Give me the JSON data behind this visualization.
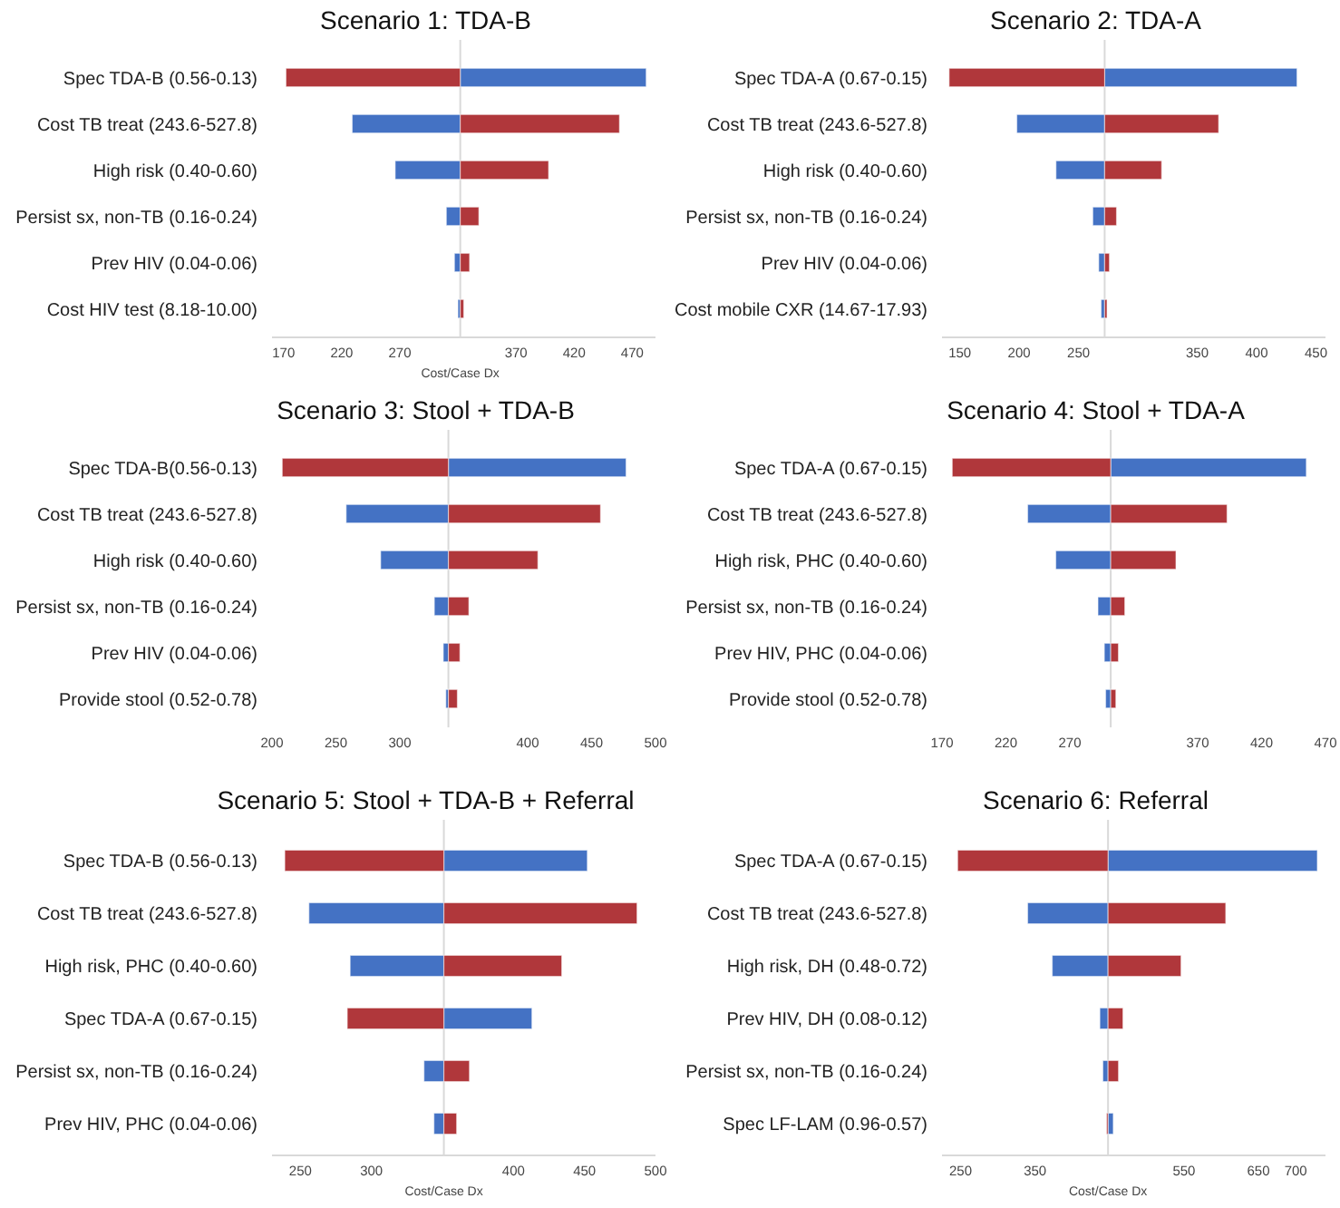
{
  "chart_data": [
    {
      "type": "bar",
      "orientation": "horizontal",
      "title": "Scenario 1: TDA-B",
      "xlabel": "Cost/Case Dx",
      "categories": [
        "Spec TDA-B (0.56-0.13)",
        "Cost TB treat (243.6-527.8)",
        "High risk (0.40-0.60)",
        "Persist sx, non-TB (0.16-0.24)",
        "Prev HIV (0.04-0.06)",
        "Cost HIV test (8.18-10.00)"
      ],
      "series": [
        {
          "color": "#4472c4",
          "base": [
            322,
            322,
            322,
            322,
            322,
            322
          ],
          "values": [
            160,
            -93,
            -56,
            -12,
            -5,
            -2
          ]
        },
        {
          "color": "#b0373b",
          "base": [
            322,
            322,
            322,
            322,
            322,
            322
          ],
          "values": [
            -150,
            137,
            76,
            16,
            8,
            3
          ]
        }
      ],
      "xlim": [
        160,
        490
      ],
      "xticks": [
        170,
        220,
        270,
        370,
        420,
        470
      ],
      "ref_lines": [
        {
          "axis": "x",
          "value": 322,
          "color": "#d9d9d9"
        }
      ]
    },
    {
      "type": "bar",
      "orientation": "horizontal",
      "title": "Scenario 2: TDA-A",
      "categories": [
        "Spec TDA-A (0.67-0.15)",
        "Cost TB treat (243.6-527.8)",
        "High risk (0.40-0.60)",
        "Persist sx, non-TB (0.16-0.24)",
        "Prev HIV (0.04-0.06)",
        "Cost mobile CXR (14.67-17.93)"
      ],
      "series": [
        {
          "color": "#4472c4",
          "base": [
            272,
            272,
            272,
            272,
            272,
            272
          ],
          "values": [
            162,
            -74,
            -41,
            -10,
            -5,
            -3
          ]
        },
        {
          "color": "#b0373b",
          "base": [
            272,
            272,
            272,
            272,
            272,
            272
          ],
          "values": [
            -131,
            96,
            48,
            10,
            4,
            2
          ]
        }
      ],
      "xlim": [
        135,
        458
      ],
      "xticks": [
        150,
        200,
        250,
        350,
        400,
        450
      ],
      "ref_lines": [
        {
          "axis": "x",
          "value": 272,
          "color": "#d9d9d9"
        }
      ]
    },
    {
      "type": "bar",
      "orientation": "horizontal",
      "title": "Scenario 3: Stool + TDA-B",
      "categories": [
        "Spec TDA-B(0.56-0.13)",
        "Cost TB treat (243.6-527.8)",
        "High risk (0.40-0.60)",
        "Persist sx, non-TB (0.16-0.24)",
        "Prev HIV (0.04-0.06)",
        "Provide stool (0.52-0.78)"
      ],
      "series": [
        {
          "color": "#4472c4",
          "base": [
            338,
            338,
            338,
            338,
            338,
            338
          ],
          "values": [
            139,
            -80,
            -53,
            -11,
            -4,
            -2
          ]
        },
        {
          "color": "#b0373b",
          "base": [
            338,
            338,
            338,
            338,
            338,
            338
          ],
          "values": [
            -130,
            119,
            70,
            16,
            9,
            7
          ]
        }
      ],
      "xlim": [
        200,
        500
      ],
      "xticks": [
        200,
        250,
        300,
        400,
        450,
        500
      ],
      "ref_lines": [
        {
          "axis": "x",
          "value": 338,
          "color": "#d9d9d9"
        }
      ]
    },
    {
      "type": "bar",
      "orientation": "horizontal",
      "title": "Scenario 4: Stool + TDA-A",
      "categories": [
        "Spec TDA-A (0.67-0.15)",
        "Cost TB treat (243.6-527.8)",
        "High risk, PHC (0.40-0.60)",
        "Persist sx, non-TB (0.16-0.24)",
        "Prev HIV, PHC (0.04-0.06)",
        "Provide stool (0.52-0.78)"
      ],
      "series": [
        {
          "color": "#4472c4",
          "base": [
            302,
            302,
            302,
            302,
            302,
            302
          ],
          "values": [
            153,
            -65,
            -43,
            -10,
            -5,
            -4
          ]
        },
        {
          "color": "#b0373b",
          "base": [
            302,
            302,
            302,
            302,
            302,
            302
          ],
          "values": [
            -124,
            91,
            51,
            11,
            6,
            4
          ]
        }
      ],
      "xlim": [
        170,
        470
      ],
      "xticks": [
        170,
        220,
        270,
        370,
        420,
        470
      ],
      "ref_lines": [
        {
          "axis": "x",
          "value": 302,
          "color": "#d9d9d9"
        }
      ]
    },
    {
      "type": "bar",
      "orientation": "horizontal",
      "title": "Scenario 5: Stool + TDA-B + Referral",
      "xlabel": "Cost/Case Dx",
      "categories": [
        "Spec TDA-B (0.56-0.13)",
        "Cost TB treat (243.6-527.8)",
        "High risk, PHC (0.40-0.60)",
        "Spec TDA-A (0.67-0.15)",
        "Persist sx, non-TB (0.16-0.24)",
        "Prev HIV, PHC (0.04-0.06)"
      ],
      "series": [
        {
          "color": "#4472c4",
          "base": [
            351,
            351,
            351,
            351,
            351,
            351
          ],
          "values": [
            101,
            -95,
            -66,
            62,
            -14,
            -7
          ]
        },
        {
          "color": "#b0373b",
          "base": [
            351,
            351,
            351,
            351,
            351,
            351
          ],
          "values": [
            -112,
            136,
            83,
            -68,
            18,
            9
          ]
        }
      ],
      "xlim": [
        230,
        500
      ],
      "xticks": [
        250,
        300,
        400,
        450,
        500
      ],
      "ref_lines": [
        {
          "axis": "x",
          "value": 351,
          "color": "#d9d9d9"
        }
      ]
    },
    {
      "type": "bar",
      "orientation": "horizontal",
      "title": "Scenario 6: Referral",
      "xlabel": "Cost/Case Dx",
      "categories": [
        "Spec TDA-A (0.67-0.15)",
        "Cost TB treat (243.6-527.8)",
        "High risk, DH (0.48-0.72)",
        "Prev HIV, DH (0.08-0.12)",
        "Persist sx, non-TB (0.16-0.24)",
        "Spec LF-LAM (0.96-0.57)"
      ],
      "series": [
        {
          "color": "#4472c4",
          "base": [
            448,
            448,
            448,
            448,
            448,
            448
          ],
          "values": [
            281,
            -108,
            -75,
            -11,
            -7,
            7
          ]
        },
        {
          "color": "#b0373b",
          "base": [
            448,
            448,
            448,
            448,
            448,
            448
          ],
          "values": [
            -202,
            158,
            98,
            20,
            14,
            -2
          ]
        }
      ],
      "xlim": [
        225,
        740
      ],
      "xticks": [
        250,
        350,
        550,
        650,
        700
      ],
      "ref_lines": [
        {
          "axis": "x",
          "value": 448,
          "color": "#d9d9d9"
        }
      ]
    }
  ]
}
